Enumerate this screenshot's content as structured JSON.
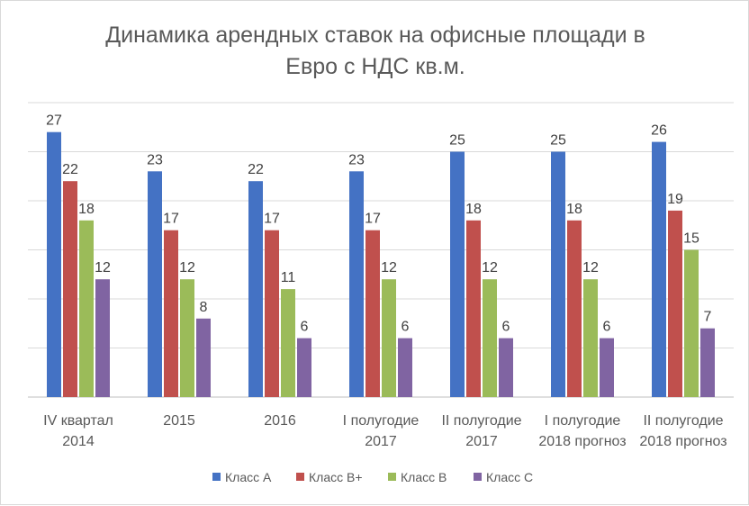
{
  "chart_data": {
    "type": "bar",
    "title_lines": [
      "Динамика арендных ставок на офисные площади в",
      "Евро с НДС кв.м."
    ],
    "title": "Динамика арендных ставок на офисные площади в Евро с НДС кв.м.",
    "categories": [
      [
        "IV квартал",
        "2014"
      ],
      [
        "2015"
      ],
      [
        "2016"
      ],
      [
        "I полугодие",
        "2017"
      ],
      [
        "II полугодие",
        "2017"
      ],
      [
        "I  полугодие",
        "2018 прогноз"
      ],
      [
        "II полугодие",
        "2018 прогноз"
      ]
    ],
    "series": [
      {
        "name": "Класс A",
        "color": "#4472c4",
        "values": [
          27,
          23,
          22,
          23,
          25,
          25,
          26
        ]
      },
      {
        "name": "Класс B+",
        "color": "#c0504d",
        "values": [
          22,
          17,
          17,
          17,
          18,
          18,
          19
        ]
      },
      {
        "name": "Класс B",
        "color": "#9bbb59",
        "values": [
          18,
          12,
          11,
          12,
          12,
          12,
          15
        ]
      },
      {
        "name": "Класс C",
        "color": "#8064a2",
        "values": [
          12,
          8,
          6,
          6,
          6,
          6,
          7
        ]
      }
    ],
    "xlabel": "",
    "ylabel": "",
    "ylim": [
      0,
      30
    ],
    "grid_step": 5,
    "grid": true,
    "legend_position": "bottom"
  }
}
